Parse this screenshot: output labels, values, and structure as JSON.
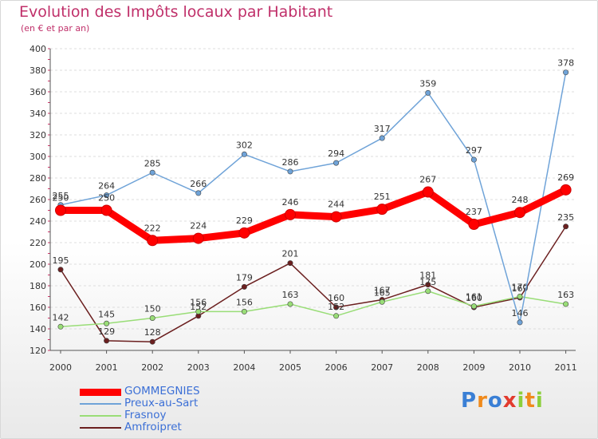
{
  "chart_data": {
    "type": "line",
    "title": "Evolution des Impôts locaux par Habitant",
    "subtitle": "(en € et par an)",
    "xlabel": "",
    "ylabel": "",
    "x": [
      "2000",
      "2001",
      "2002",
      "2003",
      "2004",
      "2005",
      "2006",
      "2007",
      "2008",
      "2009",
      "2010",
      "2011"
    ],
    "ylim": [
      120,
      400
    ],
    "yticks": [
      120,
      140,
      160,
      180,
      200,
      220,
      240,
      260,
      280,
      300,
      320,
      340,
      360,
      380,
      400
    ],
    "grid": "horizontal",
    "legend_position": "bottom-left",
    "series": [
      {
        "name": "GOMMEGNIES",
        "color": "#ff0000",
        "values": [
          250,
          250,
          222,
          224,
          229,
          246,
          244,
          251,
          267,
          237,
          248,
          269
        ]
      },
      {
        "name": "Preux-au-Sart",
        "color": "#6fa3d8",
        "values": [
          255,
          264,
          285,
          266,
          302,
          286,
          294,
          317,
          359,
          297,
          146,
          378
        ]
      },
      {
        "name": "Frasnoy",
        "color": "#99dd77",
        "values": [
          142,
          145,
          150,
          156,
          156,
          163,
          152,
          165,
          175,
          161,
          170,
          163
        ]
      },
      {
        "name": "Amfroipret",
        "color": "#6b1f1f",
        "values": [
          195,
          129,
          128,
          152,
          179,
          201,
          160,
          167,
          181,
          160,
          169,
          235
        ]
      }
    ]
  },
  "logo": {
    "letters": [
      "P",
      "r",
      "o",
      "x",
      "i",
      "t",
      "i"
    ],
    "colors": [
      "#3a7fd5",
      "#f08a1c",
      "#3a7fd5",
      "#e23b2e",
      "#8ccf3c",
      "#f08a1c",
      "#8ccf3c"
    ]
  }
}
